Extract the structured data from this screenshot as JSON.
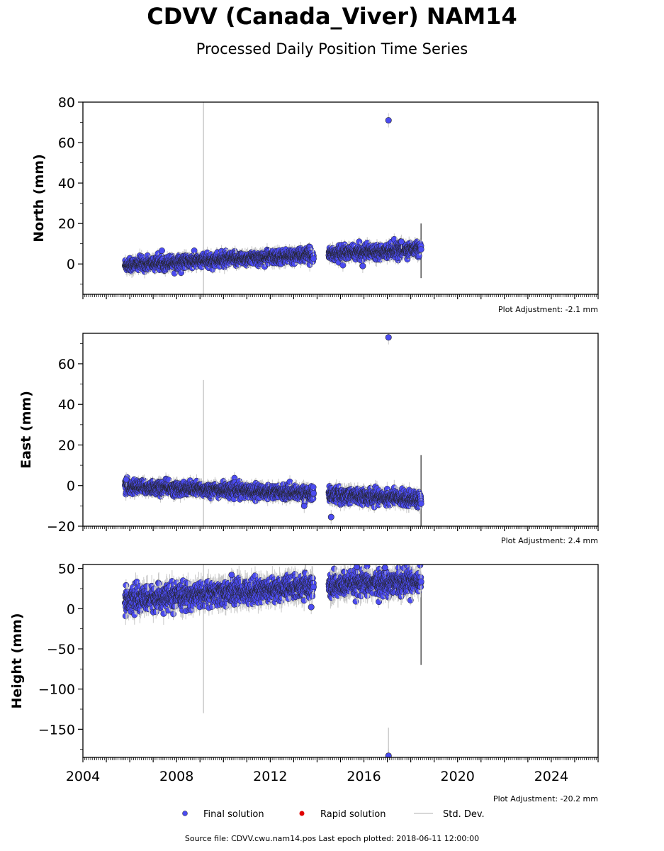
{
  "title": "CDVV (Canada_Viver) NAM14",
  "subtitle": "Processed Daily Position Time Series",
  "legend": {
    "final": "Final solution",
    "rapid": "Rapid solution",
    "stddev": "Std. Dev."
  },
  "source_text": "Source file: CDVV.cwu.nam14.pos  Last epoch plotted: 2018-06-11 12:00:00",
  "colors": {
    "final": "#4b4bf0",
    "rapid": "#e00000",
    "stddev": "#cccccc"
  },
  "chart_data": [
    {
      "type": "scatter",
      "ylabel": "North (mm)",
      "xlim": [
        2004,
        2026
      ],
      "ylim": [
        -15,
        80
      ],
      "yticks": [
        0,
        20,
        40,
        60,
        80
      ],
      "adjustment": "Plot Adjustment: -2.1 mm",
      "segments": [
        {
          "x0": 2005.8,
          "x1": 2013.85,
          "y0": -0.5,
          "y1": 4.5,
          "spread": 1.6
        },
        {
          "x0": 2014.5,
          "x1": 2018.44,
          "y0": 5.0,
          "y1": 7.5,
          "spread": 1.6
        }
      ],
      "outliers": [
        {
          "x": 2017.05,
          "y": 71
        },
        {
          "x": 2015.95,
          "y": -1.0
        },
        {
          "x": 2017.6,
          "y": 11
        }
      ],
      "spikes": [
        {
          "x": 2009.15,
          "low": -15,
          "high": 80,
          "color": "#cccccc"
        },
        {
          "x": 2018.44,
          "low": -7,
          "high": 20,
          "color": "#555555"
        }
      ]
    },
    {
      "type": "scatter",
      "ylabel": "East (mm)",
      "xlim": [
        2004,
        2026
      ],
      "ylim": [
        -20,
        75
      ],
      "yticks": [
        -20,
        0,
        20,
        40,
        60
      ],
      "adjustment": "Plot Adjustment: 2.4 mm",
      "segments": [
        {
          "x0": 2005.8,
          "x1": 2013.85,
          "y0": -0.5,
          "y1": -3.8,
          "spread": 1.6
        },
        {
          "x0": 2014.5,
          "x1": 2018.44,
          "y0": -4.5,
          "y1": -6.5,
          "spread": 1.8
        }
      ],
      "outliers": [
        {
          "x": 2017.05,
          "y": 73
        },
        {
          "x": 2014.6,
          "y": -15.5
        },
        {
          "x": 2005.85,
          "y": 3.0
        },
        {
          "x": 2013.45,
          "y": -10.0
        }
      ],
      "spikes": [
        {
          "x": 2009.15,
          "low": -20,
          "high": 52,
          "color": "#cccccc"
        },
        {
          "x": 2018.44,
          "low": -20,
          "high": 15,
          "color": "#555555"
        }
      ]
    },
    {
      "type": "scatter",
      "ylabel": "Height (mm)",
      "xlim": [
        2004,
        2026
      ],
      "ylim": [
        -185,
        55
      ],
      "yticks": [
        -150,
        -100,
        -50,
        0,
        50
      ],
      "xticks": [
        2004,
        2008,
        2012,
        2016,
        2020,
        2024
      ],
      "adjustment": "Plot Adjustment: -20.2 mm",
      "segments": [
        {
          "x0": 2005.8,
          "x1": 2013.85,
          "y0": 10,
          "y1": 28,
          "spread": 7
        },
        {
          "x0": 2014.5,
          "x1": 2018.44,
          "y0": 28,
          "y1": 35,
          "spread": 7
        }
      ],
      "outliers": [
        {
          "x": 2017.05,
          "y": -183
        },
        {
          "x": 2010.35,
          "y": 42
        },
        {
          "x": 2015.7,
          "y": 52
        },
        {
          "x": 2013.75,
          "y": 2
        },
        {
          "x": 2016.9,
          "y": 51
        }
      ],
      "spikes": [
        {
          "x": 2009.15,
          "low": -130,
          "high": 55,
          "color": "#cccccc"
        },
        {
          "x": 2017.05,
          "low": -185,
          "high": -148,
          "color": "#cccccc"
        },
        {
          "x": 2018.44,
          "low": -70,
          "high": 40,
          "color": "#555555"
        }
      ]
    }
  ]
}
